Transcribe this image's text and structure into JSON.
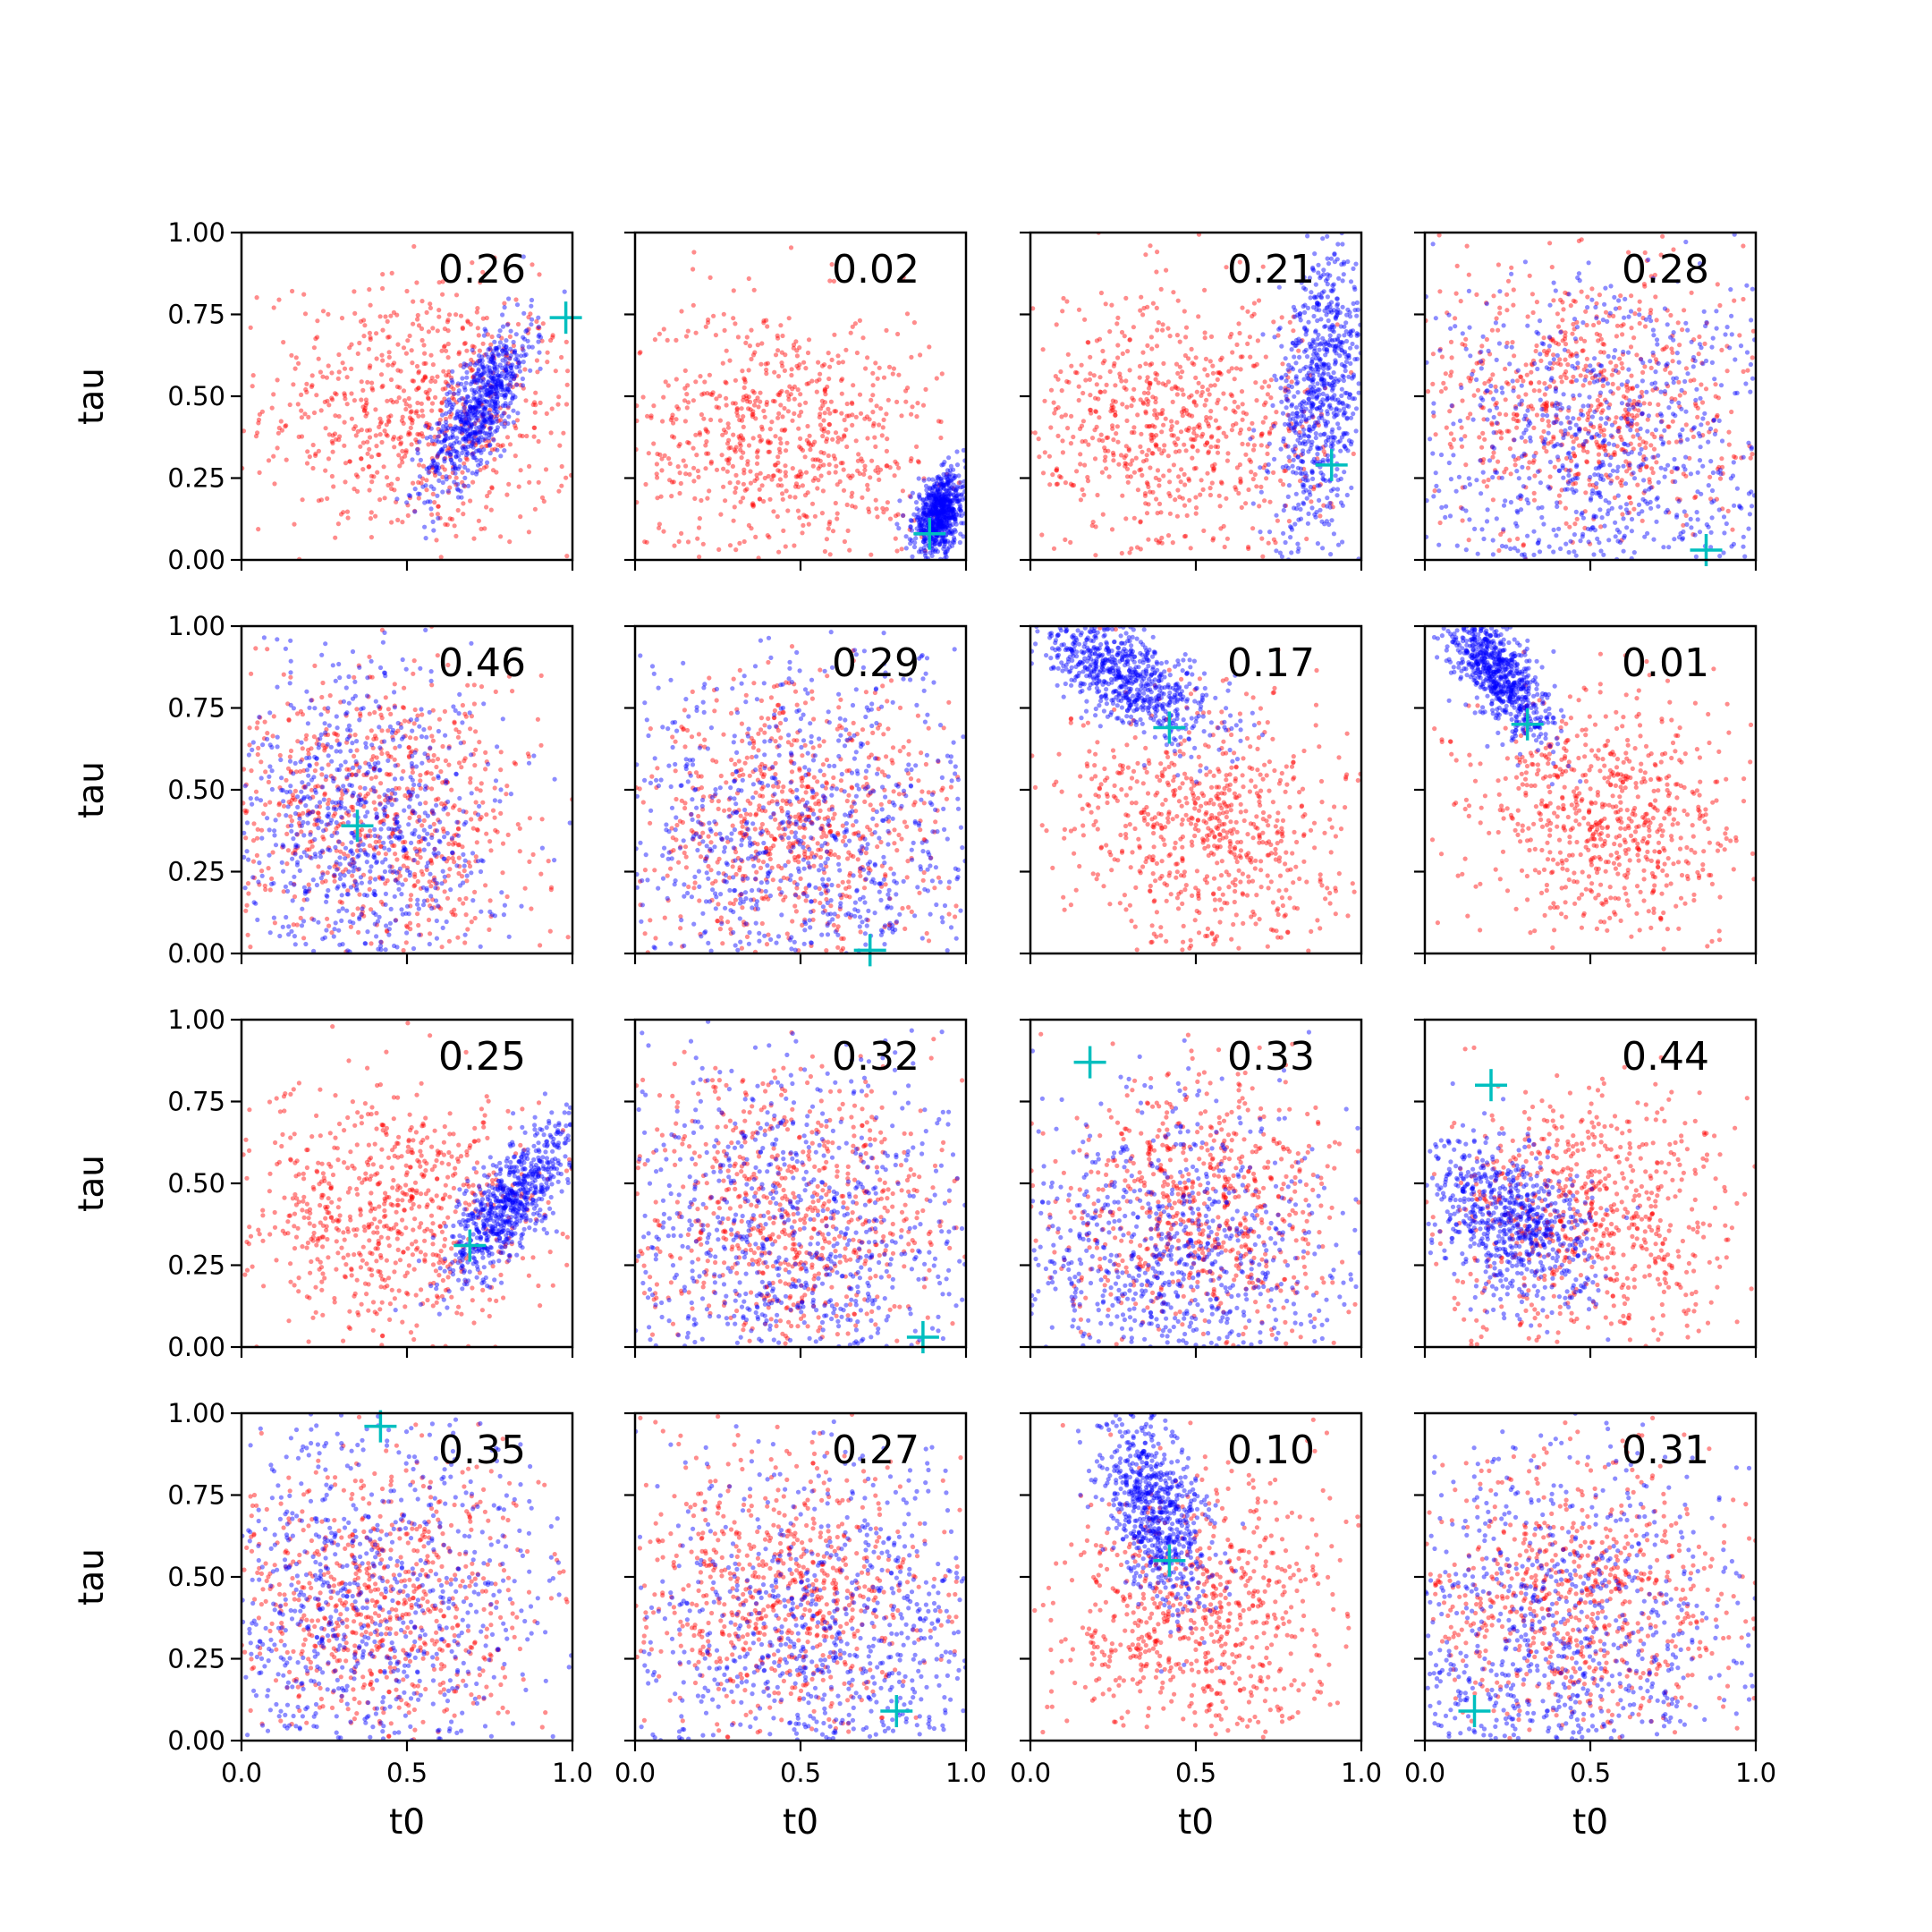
{
  "figure": {
    "xlabel": "t0",
    "ylabel": "tau",
    "xlim": [
      0,
      1
    ],
    "ylim": [
      0,
      1
    ],
    "xticks": [
      "0.0",
      "0.5",
      "1.0"
    ],
    "yticks": [
      "0.00",
      "0.25",
      "0.50",
      "0.75",
      "1.00"
    ],
    "grid": false,
    "layout": "4x4 grid of scatter panels with shared axes"
  },
  "colors": {
    "series_a": "#ff0000",
    "series_b": "#0000ff",
    "marker": "#00bfbf"
  },
  "chart_data": {
    "type": "scatter",
    "xlabel": "t0",
    "ylabel": "tau",
    "xlim": [
      0,
      1
    ],
    "ylim": [
      0,
      1
    ],
    "grid": false,
    "series_style": [
      {
        "color": "#ff0000",
        "marker": "dot"
      },
      {
        "color": "#0000ff",
        "marker": "dot"
      },
      {
        "color": "#00bfbf",
        "marker": "plus"
      }
    ],
    "panels": [
      {
        "annotation": "0.26",
        "marker": [
          0.98,
          0.74
        ],
        "red": {
          "center": [
            0.55,
            0.45
          ],
          "spread": [
            0.24,
            0.2
          ],
          "corr": -0.05
        },
        "blue": {
          "center": [
            0.72,
            0.47
          ],
          "spread": [
            0.08,
            0.13
          ],
          "corr": 0.75
        }
      },
      {
        "annotation": "0.02",
        "marker": [
          0.89,
          0.08
        ],
        "red": {
          "center": [
            0.45,
            0.38
          ],
          "spread": [
            0.24,
            0.2
          ],
          "corr": -0.05
        },
        "blue": {
          "center": [
            0.92,
            0.14
          ],
          "spread": [
            0.04,
            0.06
          ],
          "corr": 0.3
        }
      },
      {
        "annotation": "0.21",
        "marker": [
          0.91,
          0.29
        ],
        "red": {
          "center": [
            0.42,
            0.4
          ],
          "spread": [
            0.24,
            0.2
          ],
          "corr": 0.0
        },
        "blue": {
          "center": [
            0.88,
            0.52
          ],
          "spread": [
            0.07,
            0.22
          ],
          "corr": 0.3
        }
      },
      {
        "annotation": "0.28",
        "marker": [
          0.85,
          0.03
        ],
        "red": {
          "center": [
            0.48,
            0.48
          ],
          "spread": [
            0.24,
            0.22
          ],
          "corr": 0.0
        },
        "blue": {
          "center": [
            0.55,
            0.3
          ],
          "spread": [
            0.32,
            0.3
          ],
          "corr": 0.0
        }
      },
      {
        "annotation": "0.46",
        "marker": [
          0.35,
          0.39
        ],
        "red": {
          "center": [
            0.42,
            0.42
          ],
          "spread": [
            0.24,
            0.22
          ],
          "corr": 0.0
        },
        "blue": {
          "center": [
            0.38,
            0.38
          ],
          "spread": [
            0.2,
            0.26
          ],
          "corr": 0.0
        }
      },
      {
        "annotation": "0.29",
        "marker": [
          0.71,
          0.01
        ],
        "red": {
          "center": [
            0.48,
            0.38
          ],
          "spread": [
            0.24,
            0.22
          ],
          "corr": 0.0
        },
        "blue": {
          "center": [
            0.5,
            0.3
          ],
          "spread": [
            0.32,
            0.32
          ],
          "corr": 0.0
        }
      },
      {
        "annotation": "0.17",
        "marker": [
          0.42,
          0.69
        ],
        "red": {
          "center": [
            0.55,
            0.38
          ],
          "spread": [
            0.22,
            0.2
          ],
          "corr": -0.1
        },
        "blue": {
          "center": [
            0.28,
            0.85
          ],
          "spread": [
            0.14,
            0.1
          ],
          "corr": -0.7
        }
      },
      {
        "annotation": "0.01",
        "marker": [
          0.31,
          0.7
        ],
        "red": {
          "center": [
            0.55,
            0.42
          ],
          "spread": [
            0.2,
            0.18
          ],
          "corr": -0.1
        },
        "blue": {
          "center": [
            0.22,
            0.85
          ],
          "spread": [
            0.08,
            0.1
          ],
          "corr": -0.7
        }
      },
      {
        "annotation": "0.25",
        "marker": [
          0.69,
          0.31
        ],
        "red": {
          "center": [
            0.45,
            0.4
          ],
          "spread": [
            0.24,
            0.2
          ],
          "corr": 0.0
        },
        "blue": {
          "center": [
            0.82,
            0.45
          ],
          "spread": [
            0.1,
            0.13
          ],
          "corr": 0.8
        }
      },
      {
        "annotation": "0.32",
        "marker": [
          0.87,
          0.03
        ],
        "red": {
          "center": [
            0.45,
            0.4
          ],
          "spread": [
            0.24,
            0.22
          ],
          "corr": 0.0
        },
        "blue": {
          "center": [
            0.5,
            0.3
          ],
          "spread": [
            0.32,
            0.32
          ],
          "corr": 0.0
        }
      },
      {
        "annotation": "0.33",
        "marker": [
          0.18,
          0.87
        ],
        "red": {
          "center": [
            0.5,
            0.42
          ],
          "spread": [
            0.22,
            0.2
          ],
          "corr": 0.0
        },
        "blue": {
          "center": [
            0.4,
            0.25
          ],
          "spread": [
            0.25,
            0.25
          ],
          "corr": 0.0
        }
      },
      {
        "annotation": "0.44",
        "marker": [
          0.2,
          0.8
        ],
        "red": {
          "center": [
            0.5,
            0.38
          ],
          "spread": [
            0.22,
            0.2
          ],
          "corr": 0.0
        },
        "blue": {
          "center": [
            0.25,
            0.38
          ],
          "spread": [
            0.12,
            0.13
          ],
          "corr": -0.4
        }
      },
      {
        "annotation": "0.35",
        "marker": [
          0.42,
          0.96
        ],
        "red": {
          "center": [
            0.42,
            0.42
          ],
          "spread": [
            0.24,
            0.22
          ],
          "corr": 0.0
        },
        "blue": {
          "center": [
            0.35,
            0.4
          ],
          "spread": [
            0.3,
            0.3
          ],
          "corr": 0.0
        }
      },
      {
        "annotation": "0.27",
        "marker": [
          0.79,
          0.09
        ],
        "red": {
          "center": [
            0.45,
            0.45
          ],
          "spread": [
            0.24,
            0.22
          ],
          "corr": 0.0
        },
        "blue": {
          "center": [
            0.6,
            0.3
          ],
          "spread": [
            0.3,
            0.3
          ],
          "corr": 0.0
        }
      },
      {
        "annotation": "0.10",
        "marker": [
          0.42,
          0.55
        ],
        "red": {
          "center": [
            0.5,
            0.38
          ],
          "spread": [
            0.22,
            0.2
          ],
          "corr": 0.0
        },
        "blue": {
          "center": [
            0.38,
            0.7
          ],
          "spread": [
            0.08,
            0.15
          ],
          "corr": -0.4
        }
      },
      {
        "annotation": "0.31",
        "marker": [
          0.15,
          0.09
        ],
        "red": {
          "center": [
            0.45,
            0.42
          ],
          "spread": [
            0.24,
            0.22
          ],
          "corr": 0.0
        },
        "blue": {
          "center": [
            0.4,
            0.25
          ],
          "spread": [
            0.3,
            0.3
          ],
          "corr": 0.0
        }
      }
    ]
  }
}
